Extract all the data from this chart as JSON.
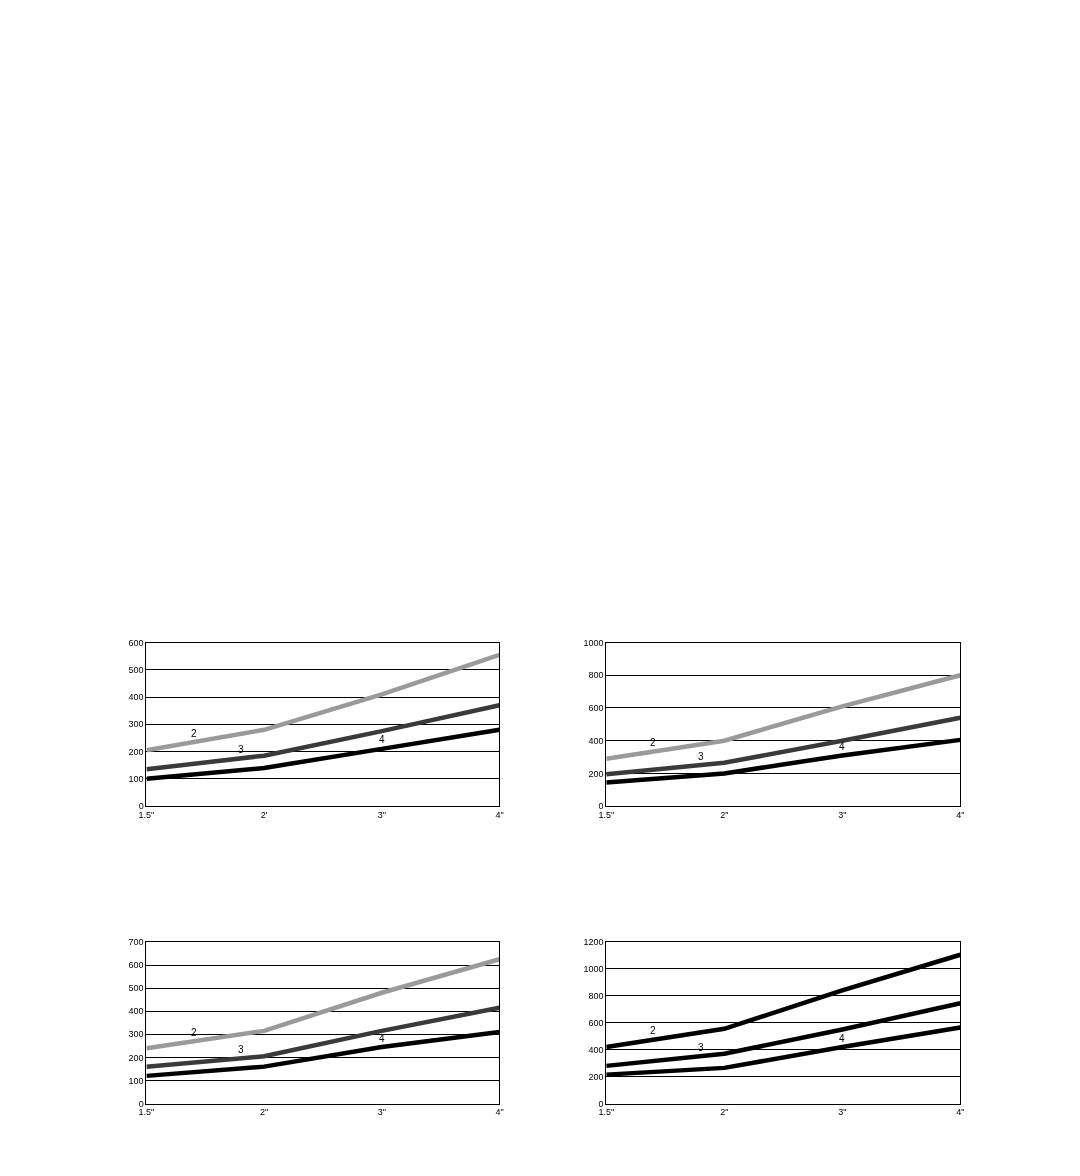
{
  "chart_data": [
    {
      "type": "line",
      "categories": [
        "1.5\"",
        "2'",
        "3\"",
        "4\""
      ],
      "ylim": [
        0,
        600
      ],
      "yticks": [
        0,
        100,
        200,
        300,
        400,
        500,
        600
      ],
      "grid": "y",
      "line_style": "solid",
      "series": [
        {
          "name": "2",
          "color": "#9a9a9a",
          "values": [
            205,
            280,
            410,
            555
          ]
        },
        {
          "name": "3",
          "color": "#3a3a3a",
          "values": [
            135,
            185,
            275,
            370
          ]
        },
        {
          "name": "4",
          "color": "#000000",
          "values": [
            100,
            140,
            210,
            280
          ]
        }
      ]
    },
    {
      "type": "line",
      "categories": [
        "1.5\"",
        "2\"",
        "3\"",
        "4\""
      ],
      "ylim": [
        0,
        1000
      ],
      "yticks": [
        0,
        200,
        400,
        600,
        800,
        1000
      ],
      "grid": "y",
      "line_style": "solid",
      "series": [
        {
          "name": "2",
          "color": "#9a9a9a",
          "values": [
            290,
            400,
            610,
            800
          ]
        },
        {
          "name": "3",
          "color": "#3a3a3a",
          "values": [
            195,
            265,
            400,
            540
          ]
        },
        {
          "name": "4",
          "color": "#000000",
          "values": [
            145,
            200,
            310,
            405
          ]
        }
      ]
    },
    {
      "type": "line",
      "categories": [
        "1.5\"",
        "2\"",
        "3\"",
        "4\""
      ],
      "ylim": [
        0,
        700
      ],
      "yticks": [
        0,
        100,
        200,
        300,
        400,
        500,
        600,
        700
      ],
      "grid": "y",
      "line_style": "solid",
      "series": [
        {
          "name": "2",
          "color": "#9a9a9a",
          "values": [
            240,
            315,
            480,
            625
          ]
        },
        {
          "name": "3",
          "color": "#3a3a3a",
          "values": [
            160,
            205,
            315,
            415
          ]
        },
        {
          "name": "4",
          "color": "#000000",
          "values": [
            120,
            160,
            245,
            310
          ]
        }
      ]
    },
    {
      "type": "line",
      "categories": [
        "1.5\"",
        "2\"",
        "3\"",
        "4\""
      ],
      "ylim": [
        0,
        1200
      ],
      "yticks": [
        0,
        200,
        400,
        600,
        800,
        1000,
        1200
      ],
      "grid": "y",
      "line_style": "solid",
      "series": [
        {
          "name": "2",
          "color": "#000000",
          "values": [
            420,
            555,
            840,
            1105
          ]
        },
        {
          "name": "3",
          "color": "#000000",
          "values": [
            280,
            370,
            550,
            745
          ]
        },
        {
          "name": "4",
          "color": "#000000",
          "values": [
            215,
            265,
            420,
            565
          ]
        }
      ]
    }
  ]
}
